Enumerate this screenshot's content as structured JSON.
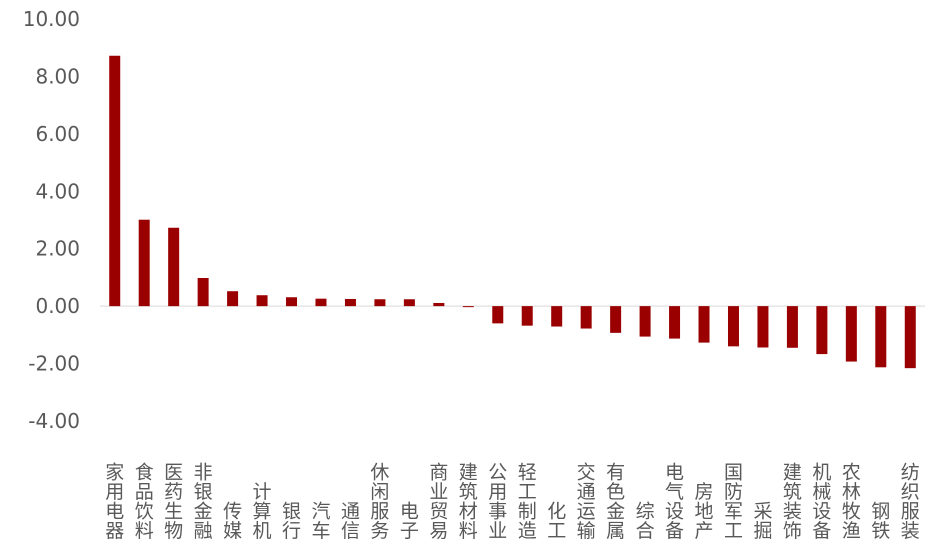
{
  "chart_data": {
    "type": "bar",
    "categories": [
      "家用电器",
      "食品饮料",
      "医药生物",
      "非银金融",
      "传媒",
      "计算机",
      "银行",
      "汽车",
      "通信",
      "休闲服务",
      "电子",
      "商业贸易",
      "建筑材料",
      "公用事业",
      "轻工制造",
      "化工",
      "交通运输",
      "有色金属",
      "综合",
      "电气设备",
      "房地产",
      "国防军工",
      "采掘",
      "建筑装饰",
      "机械设备",
      "农林牧渔",
      "钢铁",
      "纺织服装"
    ],
    "values": [
      8.72,
      3.01,
      2.73,
      0.98,
      0.52,
      0.38,
      0.31,
      0.26,
      0.25,
      0.24,
      0.24,
      0.11,
      -0.02,
      -0.6,
      -0.68,
      -0.71,
      -0.78,
      -0.93,
      -1.06,
      -1.13,
      -1.27,
      -1.4,
      -1.44,
      -1.45,
      -1.67,
      -1.93,
      -2.13,
      -2.16
    ],
    "yticks": [
      "10.00",
      "8.00",
      "6.00",
      "4.00",
      "2.00",
      "0.00",
      "-2.00",
      "-4.00"
    ],
    "ylim": [
      -4,
      10
    ],
    "grid": false,
    "colors": {
      "bar": "#9b0000",
      "axis": "#d9d9d9",
      "text": "#595959"
    }
  }
}
